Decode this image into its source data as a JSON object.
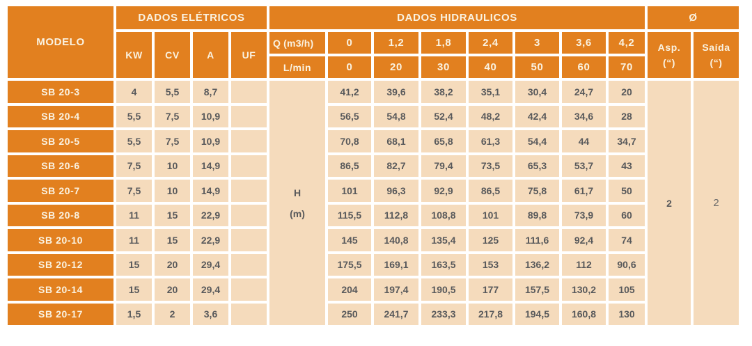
{
  "header": {
    "modelo": "MODELO",
    "dados_eletricos": "DADOS ELÉTRICOS",
    "dados_hidraulicos": "DADOS HIDRAULICOS",
    "diameter": "Ø",
    "electric_cols": {
      "kw": "KW",
      "cv": "CV",
      "a": "A",
      "uf": "UF"
    },
    "q_label": "Q (m3/h)",
    "lmin_label": "L/min",
    "q_values": [
      "0",
      "1,2",
      "1,8",
      "2,4",
      "3",
      "3,6",
      "4,2"
    ],
    "lmin_values": [
      "0",
      "20",
      "30",
      "40",
      "50",
      "60",
      "70"
    ],
    "asp_line1": "Asp.",
    "asp_line2": "(“)",
    "saida_line1": "Saída",
    "saida_line2": "(“)"
  },
  "h_unit_line1": "H",
  "h_unit_line2": "(m)",
  "asp_value": "2",
  "saida_value": "2",
  "rows": [
    {
      "model": "SB 20-3",
      "kw": "4",
      "cv": "5,5",
      "a": "8,7",
      "uf": "",
      "h": [
        "41,2",
        "39,6",
        "38,2",
        "35,1",
        "30,4",
        "24,7",
        "20"
      ]
    },
    {
      "model": "SB 20-4",
      "kw": "5,5",
      "cv": "7,5",
      "a": "10,9",
      "uf": "",
      "h": [
        "56,5",
        "54,8",
        "52,4",
        "48,2",
        "42,4",
        "34,6",
        "28"
      ]
    },
    {
      "model": "SB 20-5",
      "kw": "5,5",
      "cv": "7,5",
      "a": "10,9",
      "uf": "",
      "h": [
        "70,8",
        "68,1",
        "65,8",
        "61,3",
        "54,4",
        "44",
        "34,7"
      ]
    },
    {
      "model": "SB 20-6",
      "kw": "7,5",
      "cv": "10",
      "a": "14,9",
      "uf": "",
      "h": [
        "86,5",
        "82,7",
        "79,4",
        "73,5",
        "65,3",
        "53,7",
        "43"
      ]
    },
    {
      "model": "SB 20-7",
      "kw": "7,5",
      "cv": "10",
      "a": "14,9",
      "uf": "",
      "h": [
        "101",
        "96,3",
        "92,9",
        "86,5",
        "75,8",
        "61,7",
        "50"
      ]
    },
    {
      "model": "SB 20-8",
      "kw": "11",
      "cv": "15",
      "a": "22,9",
      "uf": "",
      "h": [
        "115,5",
        "112,8",
        "108,8",
        "101",
        "89,8",
        "73,9",
        "60"
      ]
    },
    {
      "model": "SB 20-10",
      "kw": "11",
      "cv": "15",
      "a": "22,9",
      "uf": "",
      "h": [
        "145",
        "140,8",
        "135,4",
        "125",
        "111,6",
        "92,4",
        "74"
      ]
    },
    {
      "model": "SB 20-12",
      "kw": "15",
      "cv": "20",
      "a": "29,4",
      "uf": "",
      "h": [
        "175,5",
        "169,1",
        "163,5",
        "153",
        "136,2",
        "112",
        "90,6"
      ]
    },
    {
      "model": "SB 20-14",
      "kw": "15",
      "cv": "20",
      "a": "29,4",
      "uf": "",
      "h": [
        "204",
        "197,4",
        "190,5",
        "177",
        "157,5",
        "130,2",
        "105"
      ]
    },
    {
      "model": "SB 20-17",
      "kw": "1,5",
      "cv": "2",
      "a": "3,6",
      "uf": "",
      "h": [
        "250",
        "241,7",
        "233,3",
        "217,8",
        "194,5",
        "160,8",
        "130"
      ]
    }
  ],
  "colors": {
    "orange": "#E2801F",
    "beige": "#F5DBBC",
    "header_text": "#FAF2E1",
    "data_text": "#58595B"
  }
}
